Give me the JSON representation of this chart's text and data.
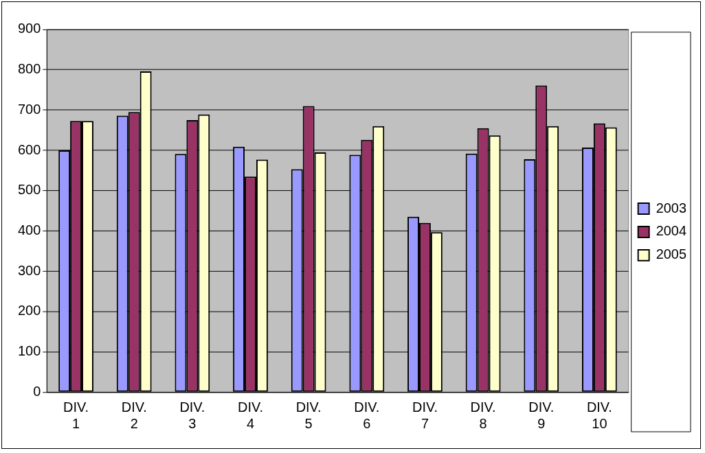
{
  "chart_data": {
    "type": "bar",
    "categories": [
      "DIV. 1",
      "DIV. 2",
      "DIV. 3",
      "DIV. 4",
      "DIV. 5",
      "DIV. 6",
      "DIV. 7",
      "DIV. 8",
      "DIV. 9",
      "DIV. 10"
    ],
    "series": [
      {
        "name": "2003",
        "color": "#9999ff",
        "values": [
          600,
          686,
          591,
          609,
          553,
          589,
          435,
          592,
          578,
          607
        ]
      },
      {
        "name": "2004",
        "color": "#993366",
        "values": [
          673,
          695,
          675,
          535,
          710,
          626,
          420,
          655,
          761,
          667
        ]
      },
      {
        "name": "2005",
        "color": "#ffffcc",
        "values": [
          673,
          796,
          689,
          577,
          595,
          660,
          397,
          637,
          660,
          657
        ]
      }
    ],
    "ylim": [
      0,
      900
    ],
    "yticks": [
      0,
      100,
      200,
      300,
      400,
      500,
      600,
      700,
      800,
      900
    ],
    "grid": "y",
    "legend": "right"
  }
}
